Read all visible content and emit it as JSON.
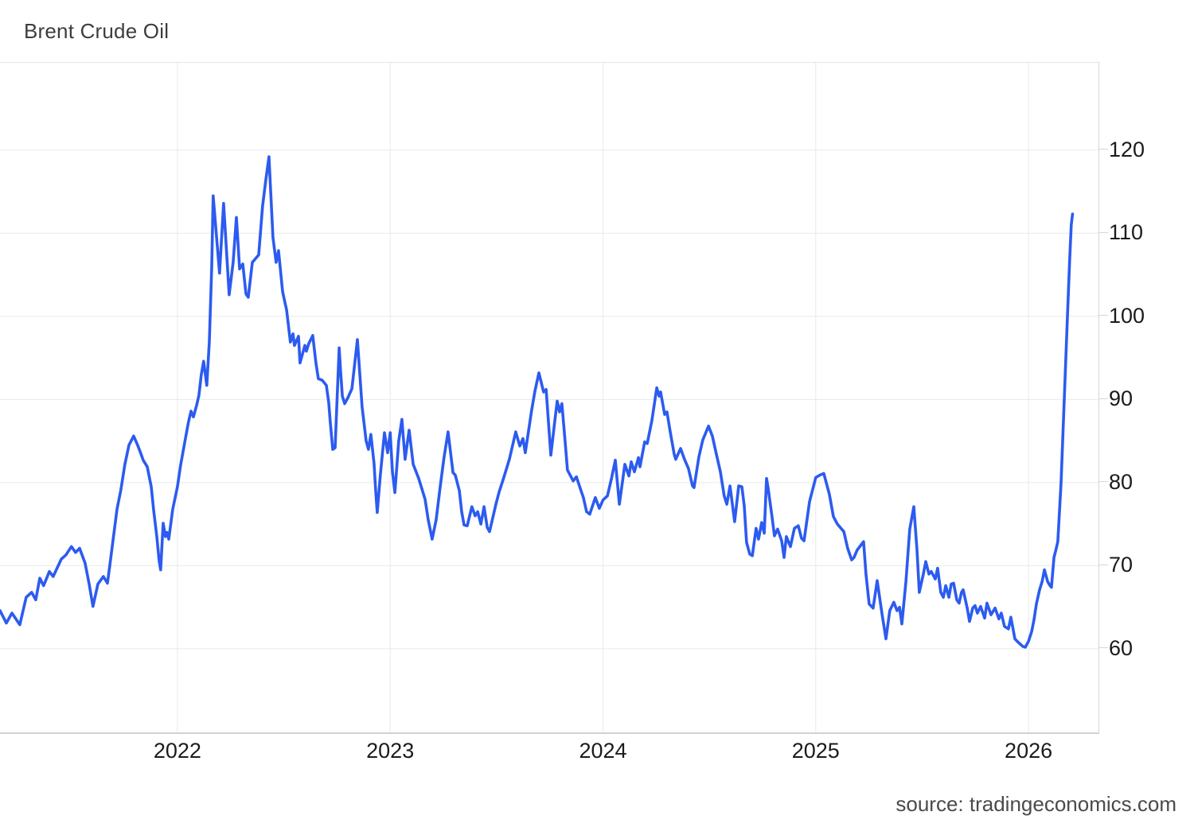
{
  "title": "Brent Crude Oil",
  "source_text": "source: tradingeconomics.com",
  "colors": {
    "background": "#ffffff",
    "line": "#2c5bf0",
    "grid": "#e9e9e9",
    "border": "#d6d6d6",
    "title_text": "#3d3d3d",
    "tick_text": "#1b1b1b",
    "source_text": "#4a4a4a"
  },
  "chart_data": {
    "type": "line",
    "title": "Brent Crude Oil",
    "series_name": "Brent Crude Oil price (USD per barrel)",
    "x_unit": "decimal_year",
    "x_range": [
      2021.166,
      2026.329
    ],
    "y_range": [
      49.95,
      130.5
    ],
    "y_ticks": [
      60,
      70,
      80,
      90,
      100,
      110,
      120
    ],
    "x_grid_years": [
      2022,
      2023,
      2024,
      2025,
      2026
    ],
    "x_tick_labels": [
      "2022",
      "2023",
      "2024",
      "2025",
      "2026"
    ],
    "y_axis_side": "right",
    "grid": true,
    "legend": "none",
    "points": [
      [
        2021.166,
        64.6
      ],
      [
        2021.196,
        63.1
      ],
      [
        2021.222,
        64.3
      ],
      [
        2021.259,
        62.9
      ],
      [
        2021.289,
        66.2
      ],
      [
        2021.315,
        66.8
      ],
      [
        2021.334,
        65.9
      ],
      [
        2021.353,
        68.5
      ],
      [
        2021.371,
        67.6
      ],
      [
        2021.398,
        69.3
      ],
      [
        2021.416,
        68.7
      ],
      [
        2021.454,
        70.8
      ],
      [
        2021.476,
        71.3
      ],
      [
        2021.502,
        72.3
      ],
      [
        2021.521,
        71.6
      ],
      [
        2021.54,
        72.1
      ],
      [
        2021.566,
        70.3
      ],
      [
        2021.585,
        67.8
      ],
      [
        2021.603,
        65.1
      ],
      [
        2021.626,
        67.8
      ],
      [
        2021.652,
        68.7
      ],
      [
        2021.671,
        67.9
      ],
      [
        2021.682,
        70.0
      ],
      [
        2021.716,
        76.8
      ],
      [
        2021.734,
        79.1
      ],
      [
        2021.753,
        82.2
      ],
      [
        2021.772,
        84.5
      ],
      [
        2021.794,
        85.6
      ],
      [
        2021.813,
        84.5
      ],
      [
        2021.828,
        83.5
      ],
      [
        2021.839,
        82.7
      ],
      [
        2021.858,
        81.9
      ],
      [
        2021.877,
        79.5
      ],
      [
        2021.888,
        76.7
      ],
      [
        2021.903,
        73.5
      ],
      [
        2021.914,
        70.6
      ],
      [
        2021.921,
        69.5
      ],
      [
        2021.933,
        75.1
      ],
      [
        2021.944,
        73.5
      ],
      [
        2021.951,
        74.0
      ],
      [
        2021.959,
        73.2
      ],
      [
        2021.978,
        76.8
      ],
      [
        2022.0,
        79.5
      ],
      [
        2022.015,
        82.1
      ],
      [
        2022.034,
        84.8
      ],
      [
        2022.052,
        87.3
      ],
      [
        2022.064,
        88.6
      ],
      [
        2022.075,
        87.9
      ],
      [
        2022.09,
        89.3
      ],
      [
        2022.101,
        90.5
      ],
      [
        2022.112,
        93.0
      ],
      [
        2022.123,
        94.6
      ],
      [
        2022.138,
        91.7
      ],
      [
        2022.15,
        97.0
      ],
      [
        2022.161,
        106.0
      ],
      [
        2022.168,
        114.5
      ],
      [
        2022.198,
        105.2
      ],
      [
        2022.217,
        113.6
      ],
      [
        2022.243,
        102.6
      ],
      [
        2022.262,
        106.5
      ],
      [
        2022.277,
        111.9
      ],
      [
        2022.292,
        105.7
      ],
      [
        2022.307,
        106.3
      ],
      [
        2022.322,
        102.7
      ],
      [
        2022.333,
        102.3
      ],
      [
        2022.352,
        106.5
      ],
      [
        2022.382,
        107.4
      ],
      [
        2022.4,
        113.2
      ],
      [
        2022.415,
        116.3
      ],
      [
        2022.43,
        119.2
      ],
      [
        2022.449,
        109.5
      ],
      [
        2022.464,
        106.5
      ],
      [
        2022.475,
        107.9
      ],
      [
        2022.494,
        103.0
      ],
      [
        2022.505,
        101.7
      ],
      [
        2022.513,
        100.8
      ],
      [
        2022.531,
        96.9
      ],
      [
        2022.543,
        97.9
      ],
      [
        2022.55,
        96.5
      ],
      [
        2022.569,
        97.6
      ],
      [
        2022.576,
        94.4
      ],
      [
        2022.599,
        96.5
      ],
      [
        2022.606,
        95.8
      ],
      [
        2022.617,
        96.7
      ],
      [
        2022.636,
        97.7
      ],
      [
        2022.651,
        94.4
      ],
      [
        2022.662,
        92.5
      ],
      [
        2022.681,
        92.3
      ],
      [
        2022.7,
        91.7
      ],
      [
        2022.711,
        89.6
      ],
      [
        2022.718,
        87.4
      ],
      [
        2022.73,
        84.0
      ],
      [
        2022.741,
        84.2
      ],
      [
        2022.76,
        96.2
      ],
      [
        2022.767,
        93.4
      ],
      [
        2022.775,
        90.4
      ],
      [
        2022.786,
        89.5
      ],
      [
        2022.801,
        90.2
      ],
      [
        2022.82,
        91.3
      ],
      [
        2022.846,
        97.2
      ],
      [
        2022.868,
        89.1
      ],
      [
        2022.887,
        85.0
      ],
      [
        2022.898,
        84.0
      ],
      [
        2022.909,
        85.8
      ],
      [
        2022.924,
        82.3
      ],
      [
        2022.932,
        79.0
      ],
      [
        2022.939,
        76.4
      ],
      [
        2022.954,
        81.0
      ],
      [
        2022.973,
        86.0
      ],
      [
        2022.988,
        83.6
      ],
      [
        2023.0,
        86.0
      ],
      [
        2023.011,
        81.2
      ],
      [
        2023.022,
        78.8
      ],
      [
        2023.04,
        85.0
      ],
      [
        2023.055,
        87.6
      ],
      [
        2023.07,
        82.8
      ],
      [
        2023.089,
        86.3
      ],
      [
        2023.108,
        82.2
      ],
      [
        2023.134,
        80.5
      ],
      [
        2023.164,
        78.0
      ],
      [
        2023.179,
        75.5
      ],
      [
        2023.197,
        73.2
      ],
      [
        2023.216,
        75.5
      ],
      [
        2023.235,
        79.5
      ],
      [
        2023.253,
        83.0
      ],
      [
        2023.272,
        86.1
      ],
      [
        2023.295,
        81.2
      ],
      [
        2023.306,
        80.9
      ],
      [
        2023.325,
        79.0
      ],
      [
        2023.336,
        76.5
      ],
      [
        2023.347,
        74.9
      ],
      [
        2023.362,
        74.8
      ],
      [
        2023.384,
        77.1
      ],
      [
        2023.399,
        76.0
      ],
      [
        2023.411,
        76.5
      ],
      [
        2023.426,
        75.0
      ],
      [
        2023.441,
        77.1
      ],
      [
        2023.456,
        74.6
      ],
      [
        2023.467,
        74.1
      ],
      [
        2023.497,
        77.4
      ],
      [
        2023.512,
        78.9
      ],
      [
        2023.534,
        80.6
      ],
      [
        2023.56,
        82.8
      ],
      [
        2023.59,
        86.1
      ],
      [
        2023.609,
        84.4
      ],
      [
        2023.624,
        85.3
      ],
      [
        2023.635,
        83.6
      ],
      [
        2023.665,
        88.7
      ],
      [
        2023.68,
        91.0
      ],
      [
        2023.699,
        93.2
      ],
      [
        2023.721,
        90.9
      ],
      [
        2023.733,
        91.2
      ],
      [
        2023.755,
        83.3
      ],
      [
        2023.774,
        87.5
      ],
      [
        2023.785,
        89.8
      ],
      [
        2023.796,
        88.5
      ],
      [
        2023.807,
        89.5
      ],
      [
        2023.822,
        85.0
      ],
      [
        2023.833,
        81.5
      ],
      [
        2023.86,
        80.2
      ],
      [
        2023.875,
        80.7
      ],
      [
        2023.897,
        79.0
      ],
      [
        2023.908,
        78.2
      ],
      [
        2023.923,
        76.5
      ],
      [
        2023.938,
        76.2
      ],
      [
        2023.964,
        78.2
      ],
      [
        2023.983,
        76.9
      ],
      [
        2024.0,
        77.9
      ],
      [
        2024.021,
        78.4
      ],
      [
        2024.04,
        80.5
      ],
      [
        2024.058,
        82.7
      ],
      [
        2024.077,
        77.4
      ],
      [
        2024.103,
        82.2
      ],
      [
        2024.122,
        80.8
      ],
      [
        2024.133,
        82.5
      ],
      [
        2024.148,
        81.3
      ],
      [
        2024.167,
        83.0
      ],
      [
        2024.174,
        81.9
      ],
      [
        2024.196,
        84.9
      ],
      [
        2024.208,
        84.7
      ],
      [
        2024.23,
        87.5
      ],
      [
        2024.253,
        91.4
      ],
      [
        2024.264,
        90.4
      ],
      [
        2024.271,
        90.9
      ],
      [
        2024.29,
        88.2
      ],
      [
        2024.301,
        88.5
      ],
      [
        2024.316,
        86.1
      ],
      [
        2024.335,
        83.4
      ],
      [
        2024.342,
        82.8
      ],
      [
        2024.365,
        84.1
      ],
      [
        2024.383,
        82.8
      ],
      [
        2024.402,
        81.7
      ],
      [
        2024.421,
        79.6
      ],
      [
        2024.428,
        79.4
      ],
      [
        2024.451,
        83.1
      ],
      [
        2024.469,
        85.1
      ],
      [
        2024.496,
        86.8
      ],
      [
        2024.514,
        85.6
      ],
      [
        2024.533,
        83.4
      ],
      [
        2024.552,
        81.3
      ],
      [
        2024.57,
        78.4
      ],
      [
        2024.582,
        77.4
      ],
      [
        2024.597,
        79.6
      ],
      [
        2024.619,
        75.3
      ],
      [
        2024.638,
        79.6
      ],
      [
        2024.653,
        79.5
      ],
      [
        2024.664,
        77.2
      ],
      [
        2024.675,
        72.8
      ],
      [
        2024.69,
        71.4
      ],
      [
        2024.702,
        71.2
      ],
      [
        2024.72,
        74.5
      ],
      [
        2024.731,
        73.2
      ],
      [
        2024.746,
        75.2
      ],
      [
        2024.758,
        73.9
      ],
      [
        2024.769,
        80.5
      ],
      [
        2024.776,
        79.4
      ],
      [
        2024.795,
        75.8
      ],
      [
        2024.806,
        73.6
      ],
      [
        2024.821,
        74.4
      ],
      [
        2024.84,
        73.0
      ],
      [
        2024.851,
        71.0
      ],
      [
        2024.862,
        73.5
      ],
      [
        2024.881,
        72.3
      ],
      [
        2024.9,
        74.5
      ],
      [
        2024.918,
        74.8
      ],
      [
        2024.933,
        73.3
      ],
      [
        2024.945,
        73.0
      ],
      [
        2024.971,
        77.7
      ],
      [
        2025.0,
        80.6
      ],
      [
        2025.019,
        80.9
      ],
      [
        2025.038,
        81.1
      ],
      [
        2025.064,
        78.6
      ],
      [
        2025.083,
        75.9
      ],
      [
        2025.102,
        75.0
      ],
      [
        2025.132,
        74.1
      ],
      [
        2025.15,
        72.1
      ],
      [
        2025.169,
        70.7
      ],
      [
        2025.18,
        71.0
      ],
      [
        2025.195,
        71.9
      ],
      [
        2025.225,
        72.9
      ],
      [
        2025.236,
        69.0
      ],
      [
        2025.251,
        65.4
      ],
      [
        2025.27,
        64.9
      ],
      [
        2025.289,
        68.2
      ],
      [
        2025.311,
        64.3
      ],
      [
        2025.33,
        61.2
      ],
      [
        2025.348,
        64.6
      ],
      [
        2025.367,
        65.6
      ],
      [
        2025.382,
        64.6
      ],
      [
        2025.394,
        65.0
      ],
      [
        2025.405,
        63.0
      ],
      [
        2025.424,
        68.1
      ],
      [
        2025.442,
        74.4
      ],
      [
        2025.461,
        77.1
      ],
      [
        2025.476,
        71.9
      ],
      [
        2025.487,
        66.8
      ],
      [
        2025.506,
        69.0
      ],
      [
        2025.517,
        70.5
      ],
      [
        2025.532,
        69.0
      ],
      [
        2025.543,
        69.3
      ],
      [
        2025.562,
        68.4
      ],
      [
        2025.573,
        69.7
      ],
      [
        2025.588,
        66.8
      ],
      [
        2025.6,
        66.2
      ],
      [
        2025.611,
        67.6
      ],
      [
        2025.626,
        66.2
      ],
      [
        2025.637,
        67.8
      ],
      [
        2025.648,
        67.9
      ],
      [
        2025.663,
        65.9
      ],
      [
        2025.674,
        65.5
      ],
      [
        2025.685,
        66.8
      ],
      [
        2025.693,
        67.1
      ],
      [
        2025.712,
        64.9
      ],
      [
        2025.723,
        63.3
      ],
      [
        2025.738,
        64.9
      ],
      [
        2025.749,
        65.2
      ],
      [
        2025.76,
        64.3
      ],
      [
        2025.775,
        65.1
      ],
      [
        2025.794,
        63.7
      ],
      [
        2025.805,
        65.5
      ],
      [
        2025.824,
        64.1
      ],
      [
        2025.843,
        64.9
      ],
      [
        2025.861,
        63.6
      ],
      [
        2025.872,
        64.3
      ],
      [
        2025.887,
        62.7
      ],
      [
        2025.906,
        62.4
      ],
      [
        2025.917,
        63.8
      ],
      [
        2025.936,
        61.2
      ],
      [
        2025.947,
        60.9
      ],
      [
        2025.973,
        60.3
      ],
      [
        2025.985,
        60.2
      ],
      [
        2026.0,
        60.9
      ],
      [
        2026.015,
        62.1
      ],
      [
        2026.026,
        63.5
      ],
      [
        2026.037,
        65.4
      ],
      [
        2026.052,
        67.1
      ],
      [
        2026.064,
        68.1
      ],
      [
        2026.075,
        69.5
      ],
      [
        2026.09,
        68.1
      ],
      [
        2026.101,
        67.6
      ],
      [
        2026.108,
        67.4
      ],
      [
        2026.12,
        71.0
      ],
      [
        2026.127,
        71.7
      ],
      [
        2026.138,
        72.9
      ],
      [
        2026.153,
        80.0
      ],
      [
        2026.168,
        90.0
      ],
      [
        2026.183,
        100.0
      ],
      [
        2026.194,
        107.0
      ],
      [
        2026.201,
        111.0
      ],
      [
        2026.207,
        112.3
      ]
    ]
  }
}
